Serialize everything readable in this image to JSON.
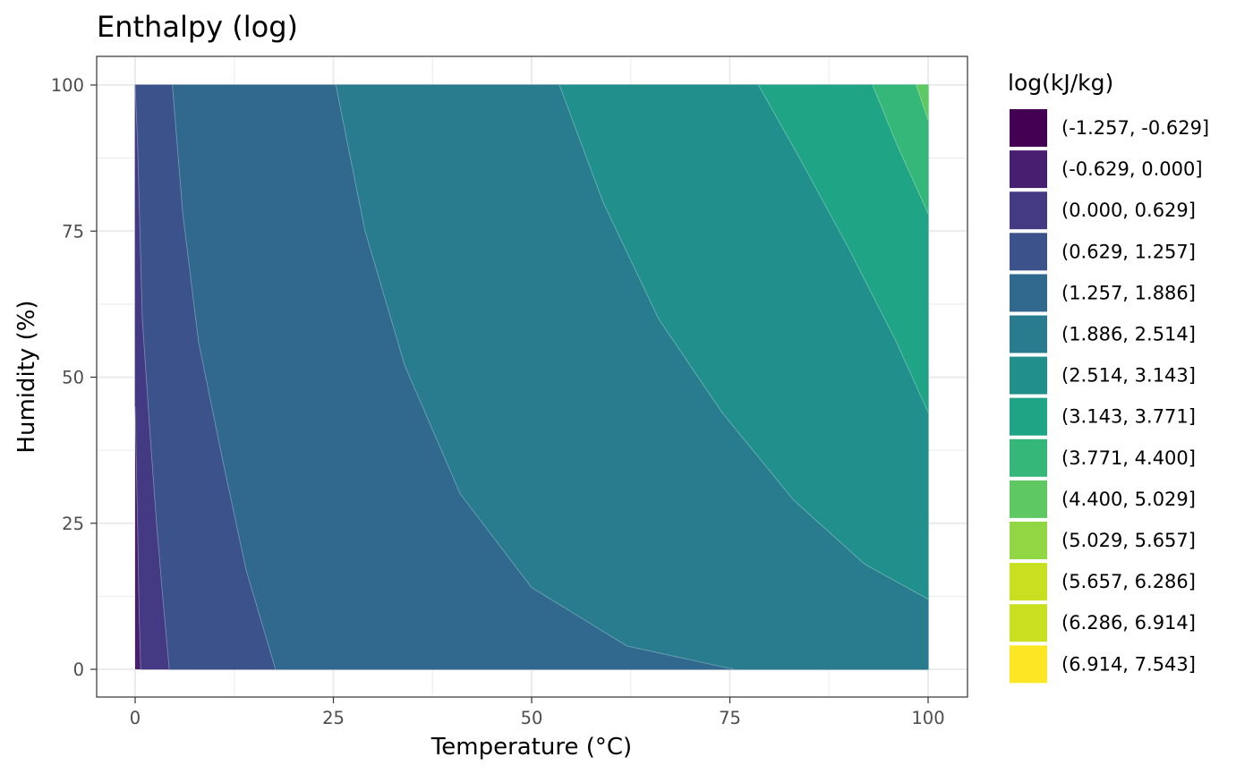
{
  "chart_data": {
    "type": "heatmap",
    "subtype": "filled-contour",
    "title": "Enthalpy (log)",
    "xlabel": "Temperature (°C)",
    "ylabel": "Humidity (%)",
    "xlim": [
      0,
      100
    ],
    "ylim": [
      0,
      100
    ],
    "x_ticks": [
      0,
      25,
      50,
      75,
      100
    ],
    "y_ticks": [
      0,
      25,
      50,
      75,
      100
    ],
    "x_tick_labels": [
      "0",
      "25",
      "50",
      "75",
      "100"
    ],
    "y_tick_labels": [
      "0",
      "25",
      "50",
      "75",
      "100"
    ],
    "grid": true,
    "legend_title": "log(kJ/kg)",
    "legend_position": "right",
    "bins": [
      {
        "label": "(-1.257, -0.629]",
        "color": "#440154"
      },
      {
        "label": "(-0.629, 0.000]",
        "color": "#481F70"
      },
      {
        "label": "(0.000, 0.629]",
        "color": "#443A83"
      },
      {
        "label": "(0.629, 1.257]",
        "color": "#3B528B"
      },
      {
        "label": "(1.257, 1.886]",
        "color": "#31688E"
      },
      {
        "label": "(1.886, 2.514]",
        "color": "#287C8E"
      },
      {
        "label": "(2.514, 3.143]",
        "color": "#21908C"
      },
      {
        "label": "(3.143, 3.771]",
        "color": "#20A486"
      },
      {
        "label": "(3.771, 4.400]",
        "color": "#35B779"
      },
      {
        "label": "(4.400, 5.029]",
        "color": "#5EC962"
      },
      {
        "label": "(5.029, 5.657]",
        "color": "#90D743"
      },
      {
        "label": "(5.657, 6.286]",
        "color": "#C8E020"
      },
      {
        "label": "(6.286, 6.914]",
        "color": "#C8E020"
      },
      {
        "label": "(6.914, 7.543]",
        "color": "#FDE725"
      }
    ],
    "region_colors": [
      "#481F70",
      "#443A83",
      "#3B528B",
      "#31688E",
      "#287C8E",
      "#21908C",
      "#20A486",
      "#35B779",
      "#5EC962"
    ],
    "contours": [
      {
        "level": 0.0,
        "points": [
          [
            0,
            45
          ],
          [
            0.3,
            25
          ],
          [
            0.5,
            10
          ],
          [
            0.7,
            0
          ]
        ]
      },
      {
        "level": 0.629,
        "points": [
          [
            0,
            100
          ],
          [
            0.3,
            90
          ],
          [
            0.9,
            60
          ],
          [
            1.9,
            40
          ],
          [
            2.7,
            25
          ],
          [
            3.5,
            12
          ],
          [
            4.3,
            0
          ]
        ]
      },
      {
        "level": 1.257,
        "points": [
          [
            4.7,
            100
          ],
          [
            6,
            78
          ],
          [
            8,
            56
          ],
          [
            11,
            36
          ],
          [
            14,
            17
          ],
          [
            17.7,
            0
          ]
        ]
      },
      {
        "level": 1.886,
        "points": [
          [
            25.3,
            100
          ],
          [
            29,
            75
          ],
          [
            34,
            52
          ],
          [
            41,
            30
          ],
          [
            50,
            14
          ],
          [
            62,
            4
          ],
          [
            75.5,
            0
          ]
        ]
      },
      {
        "level": 2.514,
        "points": [
          [
            53.5,
            100
          ],
          [
            59,
            80
          ],
          [
            66,
            60
          ],
          [
            74,
            44
          ],
          [
            83,
            29
          ],
          [
            92,
            18
          ],
          [
            100,
            12
          ]
        ]
      },
      {
        "level": 3.143,
        "points": [
          [
            78.6,
            100
          ],
          [
            84,
            87
          ],
          [
            90,
            72
          ],
          [
            96,
            56
          ],
          [
            100,
            44
          ]
        ]
      },
      {
        "level": 3.771,
        "points": [
          [
            93,
            100
          ],
          [
            96,
            90
          ],
          [
            100,
            78
          ]
        ]
      },
      {
        "level": 4.4,
        "points": [
          [
            98.5,
            100
          ],
          [
            100,
            94
          ]
        ]
      }
    ]
  }
}
